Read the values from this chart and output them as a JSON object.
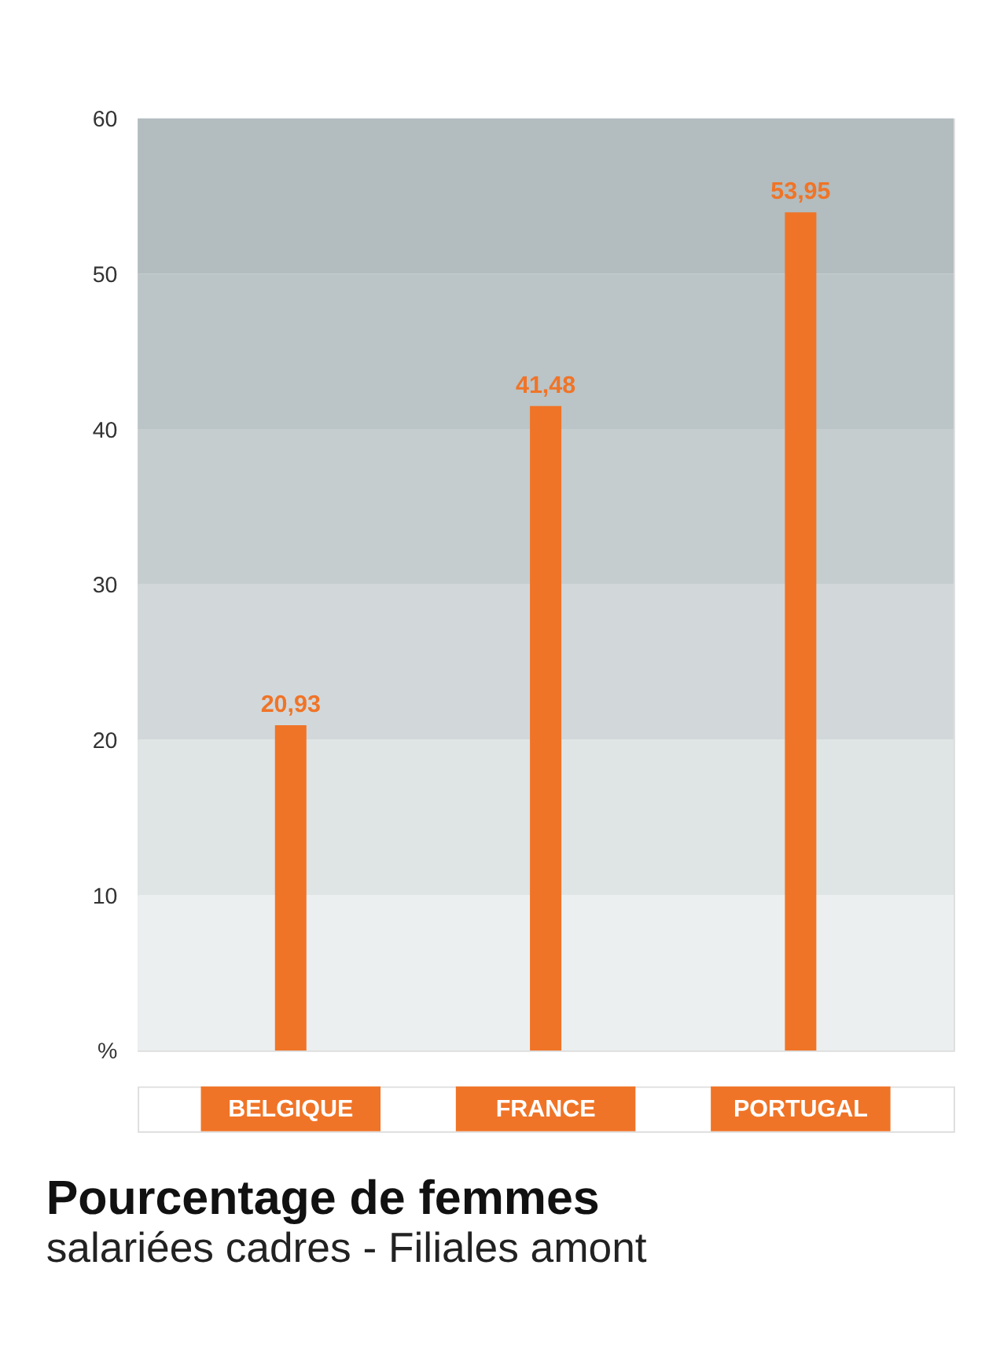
{
  "chart_data": {
    "type": "bar",
    "title": "Pourcentage de femmes",
    "subtitle": "salariées cadres - Filiales amont",
    "categories": [
      "BELGIQUE",
      "FRANCE",
      "PORTUGAL"
    ],
    "series": [
      {
        "color": "#f07427",
        "values": [
          20.93,
          41.48,
          53.95
        ]
      }
    ],
    "value_labels": [
      "20,93",
      "41,48",
      "53,95"
    ],
    "ylim": [
      0,
      60
    ],
    "yticks": [
      {
        "value": 0,
        "label": "%"
      },
      10,
      20,
      30,
      40,
      50,
      60
    ],
    "bands": [
      {
        "axis": "y",
        "from": 0,
        "to": 10,
        "color": "#eceff0"
      },
      {
        "axis": "y",
        "from": 10,
        "to": 20,
        "color": "#dfe4e4"
      },
      {
        "axis": "y",
        "from": 20,
        "to": 30,
        "color": "#d2d8da"
      },
      {
        "axis": "y",
        "from": 30,
        "to": 40,
        "color": "#c6cdcf"
      },
      {
        "axis": "y",
        "from": 40,
        "to": 50,
        "color": "#bbc4c6"
      },
      {
        "axis": "y",
        "from": 50,
        "to": 60,
        "color": "#b3bcbe"
      }
    ],
    "tick_labels": "y"
  }
}
